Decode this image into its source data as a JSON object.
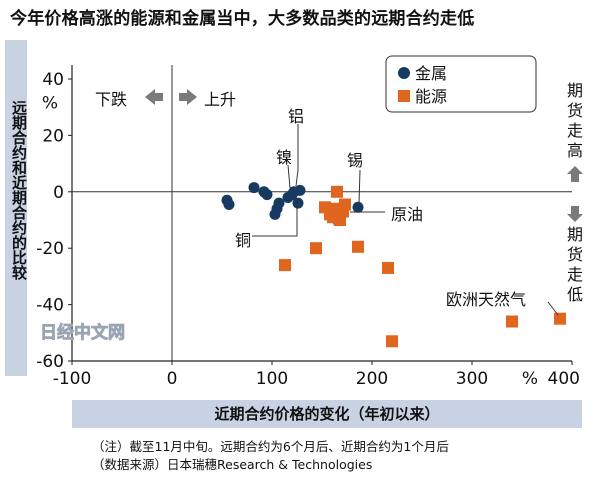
{
  "title": "今年价格高涨的能源和金属当中，大多数品类的远期合约走低",
  "ylabel": "远期合约和近期合约的比较",
  "xlabel": "近期合约价格的变化（年初以来）",
  "notes": [
    "（注）截至11月中旬。远期合约为6个月后、近期合约为1个月后",
    "（数据来源）日本瑞穗Research & Technologies"
  ],
  "watermark": "日经中文网",
  "colors": {
    "metals": "#173a61",
    "energy": "#e0651f",
    "label_bg": "#c9d2e3",
    "arrow": "#7a7a7a"
  },
  "icons": {
    "left": "arrow-left-icon",
    "right": "arrow-right-icon",
    "up": "arrow-up-icon",
    "down": "arrow-down-icon"
  },
  "chart_data": {
    "type": "scatter",
    "xlim": [
      -100,
      400
    ],
    "ylim": [
      -60,
      40
    ],
    "xticks": [
      "-100",
      "0",
      "100",
      "200",
      "300",
      "400"
    ],
    "yticks": [
      "40",
      "20",
      "0",
      "-20",
      "-40",
      "-60"
    ],
    "xunit": "%",
    "yunit": "%",
    "series": [
      {
        "name": "金属",
        "marker": "circle",
        "points": [
          [
            55,
            -3
          ],
          [
            57,
            -4.5
          ],
          [
            82,
            1.5
          ],
          [
            92,
            0
          ],
          [
            95,
            -1
          ],
          [
            103,
            -8
          ],
          [
            105,
            -6
          ],
          [
            107,
            -4
          ],
          [
            116,
            -2
          ],
          [
            120,
            -1
          ],
          [
            122,
            0
          ],
          [
            126,
            -4
          ],
          [
            128,
            0.5
          ],
          [
            186,
            -5.5
          ]
        ]
      },
      {
        "name": "能源",
        "marker": "square",
        "points": [
          [
            113,
            -26
          ],
          [
            144,
            -20
          ],
          [
            153,
            -5.5
          ],
          [
            158,
            -8
          ],
          [
            161,
            -9
          ],
          [
            163,
            -6
          ],
          [
            165,
            0
          ],
          [
            167,
            -9.5
          ],
          [
            168,
            -10
          ],
          [
            171,
            -7
          ],
          [
            173,
            -4.5
          ],
          [
            186,
            -19.5
          ],
          [
            216,
            -27
          ],
          [
            220,
            -53
          ],
          [
            340,
            -46
          ],
          [
            388,
            -45
          ]
        ]
      }
    ],
    "annotations": {
      "down": "下跌",
      "up": "上升",
      "aluminum": "铝",
      "nickel": "镍",
      "tin": "锡",
      "copper": "铜",
      "crude": "原油",
      "gas": "欧洲天然气",
      "future_up": "期货走高",
      "future_down": "期货走低"
    }
  }
}
